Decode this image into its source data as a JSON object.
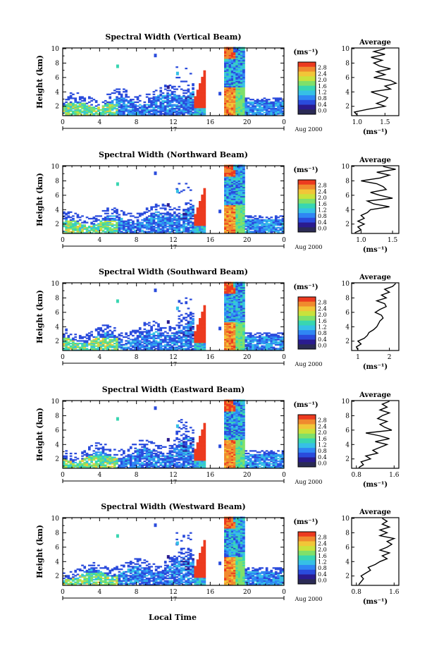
{
  "figure": {
    "xlabel_bottom": "Local Time",
    "date_label": "17",
    "month_label": "Aug 2000",
    "height_label": "Height (km)",
    "colorbar_unit": "(ms⁻¹)",
    "avg_title": "Average",
    "avg_unit": "(ms⁻¹)",
    "colorbar_ticks": [
      "0.0",
      "0.4",
      "0.8",
      "1.2",
      "1.6",
      "2.0",
      "2.4",
      "2.8"
    ],
    "colors": [
      "#2b2b55",
      "#2a1b8f",
      "#2a4bdc",
      "#2f86f4",
      "#36c0e6",
      "#38d6b1",
      "#7fe06a",
      "#c9e23c",
      "#f1c638",
      "#f08a2e",
      "#ec3a1f"
    ]
  },
  "chart_data": [
    {
      "type": "heatmap",
      "title": "Spectral Width (Vertical Beam)",
      "x_ticks": [
        "0",
        "4",
        "8",
        "12",
        "16",
        "20",
        "0"
      ],
      "y_ticks": [
        "2",
        "4",
        "6",
        "8",
        "10"
      ],
      "xlim": [
        0,
        24
      ],
      "ylim": [
        0.7,
        10.1
      ],
      "avg": {
        "x_ticks": [
          "1.0",
          "1.5"
        ],
        "xlim": [
          0.9,
          1.75
        ],
        "height": [
          0.8,
          1.2,
          1.6,
          2.0,
          2.4,
          2.8,
          3.2,
          3.6,
          4.0,
          4.4,
          4.8,
          5.2,
          5.6,
          6.0,
          6.4,
          6.8,
          7.2,
          7.6,
          8.0,
          8.4,
          8.8,
          9.2,
          9.6,
          10.0
        ],
        "value": [
          1.0,
          0.95,
          1.2,
          1.5,
          1.35,
          1.5,
          1.55,
          1.4,
          1.25,
          1.6,
          1.5,
          1.7,
          1.6,
          1.3,
          1.5,
          1.35,
          1.6,
          1.4,
          1.3,
          1.45,
          1.25,
          1.5,
          1.3,
          1.5
        ]
      }
    },
    {
      "type": "heatmap",
      "title": "Spectral Width (Northward Beam)",
      "x_ticks": [
        "0",
        "4",
        "8",
        "12",
        "16",
        "20",
        "0"
      ],
      "y_ticks": [
        "2",
        "4",
        "6",
        "8",
        "10"
      ],
      "xlim": [
        0,
        24
      ],
      "ylim": [
        0.7,
        10.1
      ],
      "avg": {
        "x_ticks": [
          "1.0",
          "1.5"
        ],
        "xlim": [
          0.85,
          1.6
        ],
        "height": [
          0.8,
          1.2,
          1.6,
          2.0,
          2.4,
          2.8,
          3.2,
          3.6,
          4.0,
          4.4,
          4.8,
          5.2,
          5.6,
          6.0,
          6.4,
          6.8,
          7.2,
          7.6,
          8.0,
          8.4,
          8.8,
          9.2,
          9.6,
          10.0
        ],
        "value": [
          0.9,
          1.0,
          0.95,
          1.05,
          0.95,
          1.05,
          1.0,
          1.1,
          1.15,
          1.45,
          1.2,
          1.1,
          1.5,
          1.3,
          1.15,
          1.4,
          1.35,
          1.25,
          1.0,
          1.3,
          1.45,
          1.25,
          1.55,
          1.35
        ]
      }
    },
    {
      "type": "heatmap",
      "title": "Spectral Width (Southward Beam)",
      "x_ticks": [
        "0",
        "4",
        "8",
        "12",
        "16",
        "20",
        "0"
      ],
      "y_ticks": [
        "2",
        "4",
        "6",
        "8",
        "10"
      ],
      "xlim": [
        0,
        24
      ],
      "ylim": [
        0.7,
        10.1
      ],
      "avg": {
        "x_ticks": [
          "1",
          "2"
        ],
        "xlim": [
          0.8,
          2.3
        ],
        "height": [
          0.8,
          1.2,
          1.6,
          2.0,
          2.4,
          2.8,
          3.2,
          3.6,
          4.0,
          4.4,
          4.8,
          5.2,
          5.6,
          6.0,
          6.4,
          6.8,
          7.2,
          7.6,
          8.0,
          8.4,
          8.8,
          9.2,
          9.6,
          10.0
        ],
        "value": [
          1.0,
          0.95,
          1.1,
          1.0,
          1.2,
          1.3,
          1.35,
          1.5,
          1.6,
          1.65,
          1.7,
          1.8,
          1.75,
          1.55,
          1.7,
          1.9,
          1.85,
          1.6,
          1.9,
          1.75,
          2.0,
          1.85,
          2.1,
          2.2
        ]
      }
    },
    {
      "type": "heatmap",
      "title": "Spectral Width (Eastward Beam)",
      "x_ticks": [
        "0",
        "4",
        "8",
        "12",
        "16",
        "20",
        "0"
      ],
      "y_ticks": [
        "2",
        "4",
        "6",
        "8",
        "10"
      ],
      "xlim": [
        0,
        24
      ],
      "ylim": [
        0.7,
        10.1
      ],
      "avg": {
        "x_ticks": [
          "0.8",
          "1.6"
        ],
        "xlim": [
          0.7,
          1.7
        ],
        "height": [
          0.8,
          1.2,
          1.6,
          2.0,
          2.4,
          2.8,
          3.2,
          3.6,
          4.0,
          4.4,
          4.8,
          5.2,
          5.6,
          6.0,
          6.4,
          6.8,
          7.2,
          7.6,
          8.0,
          8.4,
          8.8,
          9.2,
          9.6,
          10.0
        ],
        "value": [
          0.85,
          0.95,
          0.9,
          1.1,
          1.0,
          1.25,
          1.15,
          1.3,
          1.45,
          1.2,
          1.5,
          1.3,
          1.0,
          1.55,
          1.4,
          1.3,
          1.45,
          1.25,
          1.35,
          1.5,
          1.3,
          1.45,
          1.35,
          1.5
        ]
      }
    },
    {
      "type": "heatmap",
      "title": "Spectral Width (Westward Beam)",
      "x_ticks": [
        "0",
        "4",
        "8",
        "12",
        "16",
        "20",
        "0"
      ],
      "y_ticks": [
        "2",
        "4",
        "6",
        "8",
        "10"
      ],
      "xlim": [
        0,
        24
      ],
      "ylim": [
        0.7,
        10.1
      ],
      "avg": {
        "x_ticks": [
          "0.8",
          "1.6"
        ],
        "xlim": [
          0.7,
          1.7
        ],
        "height": [
          0.8,
          1.2,
          1.6,
          2.0,
          2.4,
          2.8,
          3.2,
          3.6,
          4.0,
          4.4,
          4.8,
          5.2,
          5.6,
          6.0,
          6.4,
          6.8,
          7.2,
          7.6,
          8.0,
          8.4,
          8.8,
          9.2,
          9.6,
          10.0
        ],
        "value": [
          0.85,
          0.9,
          0.95,
          0.9,
          1.0,
          1.1,
          1.05,
          1.2,
          1.3,
          1.45,
          1.35,
          1.5,
          1.3,
          1.45,
          1.55,
          1.45,
          1.6,
          1.3,
          1.45,
          1.3,
          1.5,
          1.35,
          1.45,
          1.35
        ]
      }
    }
  ]
}
